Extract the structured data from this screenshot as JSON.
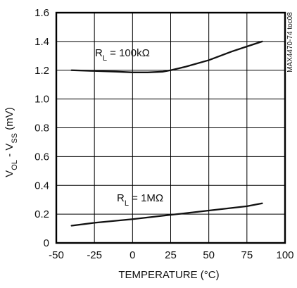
{
  "chart_data": {
    "type": "line",
    "title": "",
    "xlabel": "TEMPERATURE (°C)",
    "ylabel": {
      "main": "V",
      "sub1": "OL",
      "mid": " - V",
      "sub2": "SS",
      "tail": " (mV)"
    },
    "xlim": [
      -50,
      100
    ],
    "ylim": [
      0,
      1.6
    ],
    "xticks": [
      -50,
      -25,
      0,
      25,
      50,
      75,
      100
    ],
    "xtick_labels": [
      "-50",
      "-25",
      "0",
      "25",
      "50",
      "75",
      "100"
    ],
    "yticks": [
      0,
      0.2,
      0.4,
      0.6,
      0.8,
      1.0,
      1.2,
      1.4,
      1.6
    ],
    "ytick_labels": [
      "0",
      "0.2",
      "0.4",
      "0.6",
      "0.8",
      "1.0",
      "1.2",
      "1.4",
      "1.6"
    ],
    "grid": true,
    "side_label": "MAX4470-74 toc08",
    "series": [
      {
        "label_main": "R",
        "label_sub": "L",
        "label_tail": " = 100kΩ",
        "color": "#111111",
        "x": [
          -40,
          -25,
          -10,
          0,
          10,
          20,
          25,
          35,
          50,
          65,
          75,
          85
        ],
        "y": [
          1.2,
          1.195,
          1.19,
          1.185,
          1.185,
          1.19,
          1.2,
          1.225,
          1.27,
          1.33,
          1.365,
          1.4
        ]
      },
      {
        "label_main": "R",
        "label_sub": "L",
        "label_tail": " = 1MΩ",
        "color": "#111111",
        "x": [
          -40,
          -25,
          0,
          25,
          50,
          75,
          85
        ],
        "y": [
          0.12,
          0.14,
          0.165,
          0.195,
          0.225,
          0.255,
          0.275
        ]
      }
    ]
  }
}
